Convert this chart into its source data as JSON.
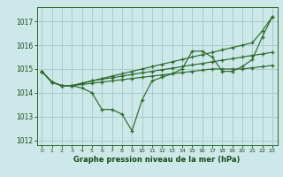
{
  "xlabel": "Graphe pression niveau de la mer (hPa)",
  "background_color": "#cce8e8",
  "grid_color": "#aacccc",
  "line_color": "#2d6a2d",
  "ylim": [
    1011.8,
    1017.6
  ],
  "xlim": [
    -0.5,
    23.5
  ],
  "yticks": [
    1012,
    1013,
    1014,
    1015,
    1016,
    1017
  ],
  "xticks": [
    0,
    1,
    2,
    3,
    4,
    5,
    6,
    7,
    8,
    9,
    10,
    11,
    12,
    13,
    14,
    15,
    16,
    17,
    18,
    19,
    20,
    21,
    22,
    23
  ],
  "series": [
    [
      1014.9,
      1014.45,
      1014.3,
      1014.3,
      1014.2,
      1014.0,
      1013.3,
      1013.3,
      1013.1,
      1012.4,
      1013.7,
      1014.5,
      1014.65,
      1014.8,
      1015.0,
      1015.75,
      1015.75,
      1015.5,
      1014.9,
      1014.9,
      1015.1,
      1015.4,
      1016.35,
      1017.2
    ],
    [
      1014.9,
      1014.45,
      1014.3,
      1014.3,
      1014.35,
      1014.4,
      1014.45,
      1014.5,
      1014.55,
      1014.6,
      1014.65,
      1014.7,
      1014.75,
      1014.8,
      1014.85,
      1014.9,
      1014.95,
      1015.0,
      1015.0,
      1015.0,
      1015.0,
      1015.05,
      1015.1,
      1015.15
    ],
    [
      1014.9,
      1014.45,
      1014.3,
      1014.3,
      1014.4,
      1014.5,
      1014.57,
      1014.63,
      1014.7,
      1014.77,
      1014.84,
      1014.9,
      1014.97,
      1015.03,
      1015.1,
      1015.17,
      1015.23,
      1015.3,
      1015.37,
      1015.43,
      1015.5,
      1015.57,
      1015.63,
      1015.7
    ],
    [
      1014.9,
      1014.45,
      1014.3,
      1014.3,
      1014.4,
      1014.5,
      1014.6,
      1014.7,
      1014.8,
      1014.9,
      1015.0,
      1015.1,
      1015.2,
      1015.3,
      1015.4,
      1015.5,
      1015.6,
      1015.7,
      1015.8,
      1015.9,
      1016.0,
      1016.1,
      1016.6,
      1017.2
    ]
  ]
}
